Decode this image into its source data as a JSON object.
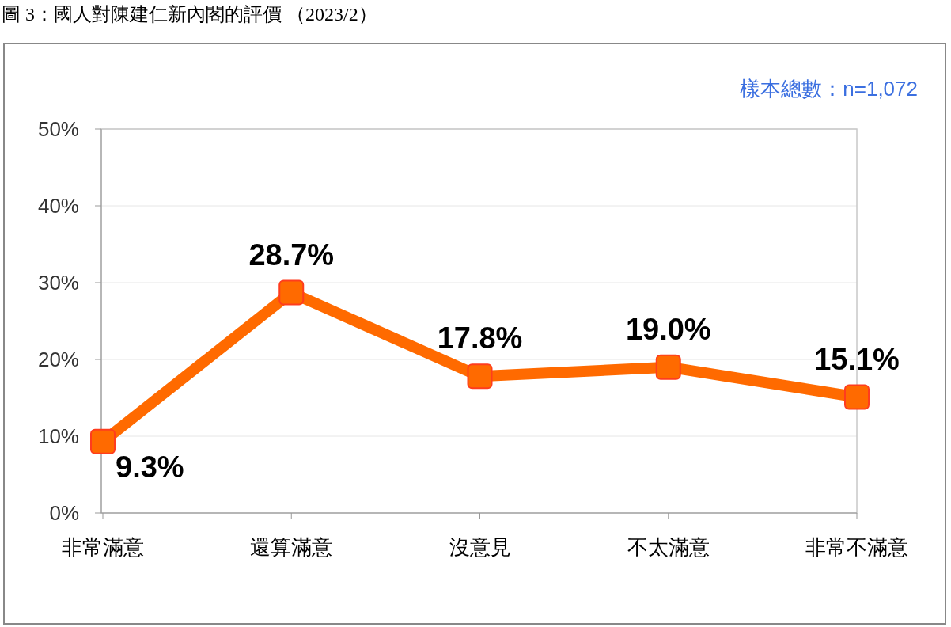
{
  "chart_data": {
    "type": "line",
    "title": "圖 3：國人對陳建仁新內閣的評價 （2023/2）",
    "annotations": [
      "樣本總數：n=1,072"
    ],
    "categories": [
      "非常滿意",
      "還算滿意",
      "沒意見",
      "不太滿意",
      "非常不滿意"
    ],
    "series": [
      {
        "color": "#ff6a00",
        "values": [
          9.3,
          28.7,
          17.8,
          19.0,
          15.1
        ],
        "value_labels": [
          "9.3%",
          "28.7%",
          "17.8%",
          "19.0%",
          "15.1%"
        ]
      }
    ],
    "ylim": [
      0,
      50
    ],
    "yticks": [
      {
        "value": 0,
        "label": "0%"
      },
      {
        "value": 10,
        "label": "10%"
      },
      {
        "value": 20,
        "label": "20%"
      },
      {
        "value": 30,
        "label": "30%"
      },
      {
        "value": 40,
        "label": "40%"
      },
      {
        "value": 50,
        "label": "50%"
      }
    ],
    "grid": "y",
    "marker": "square",
    "line_style": "solid"
  }
}
